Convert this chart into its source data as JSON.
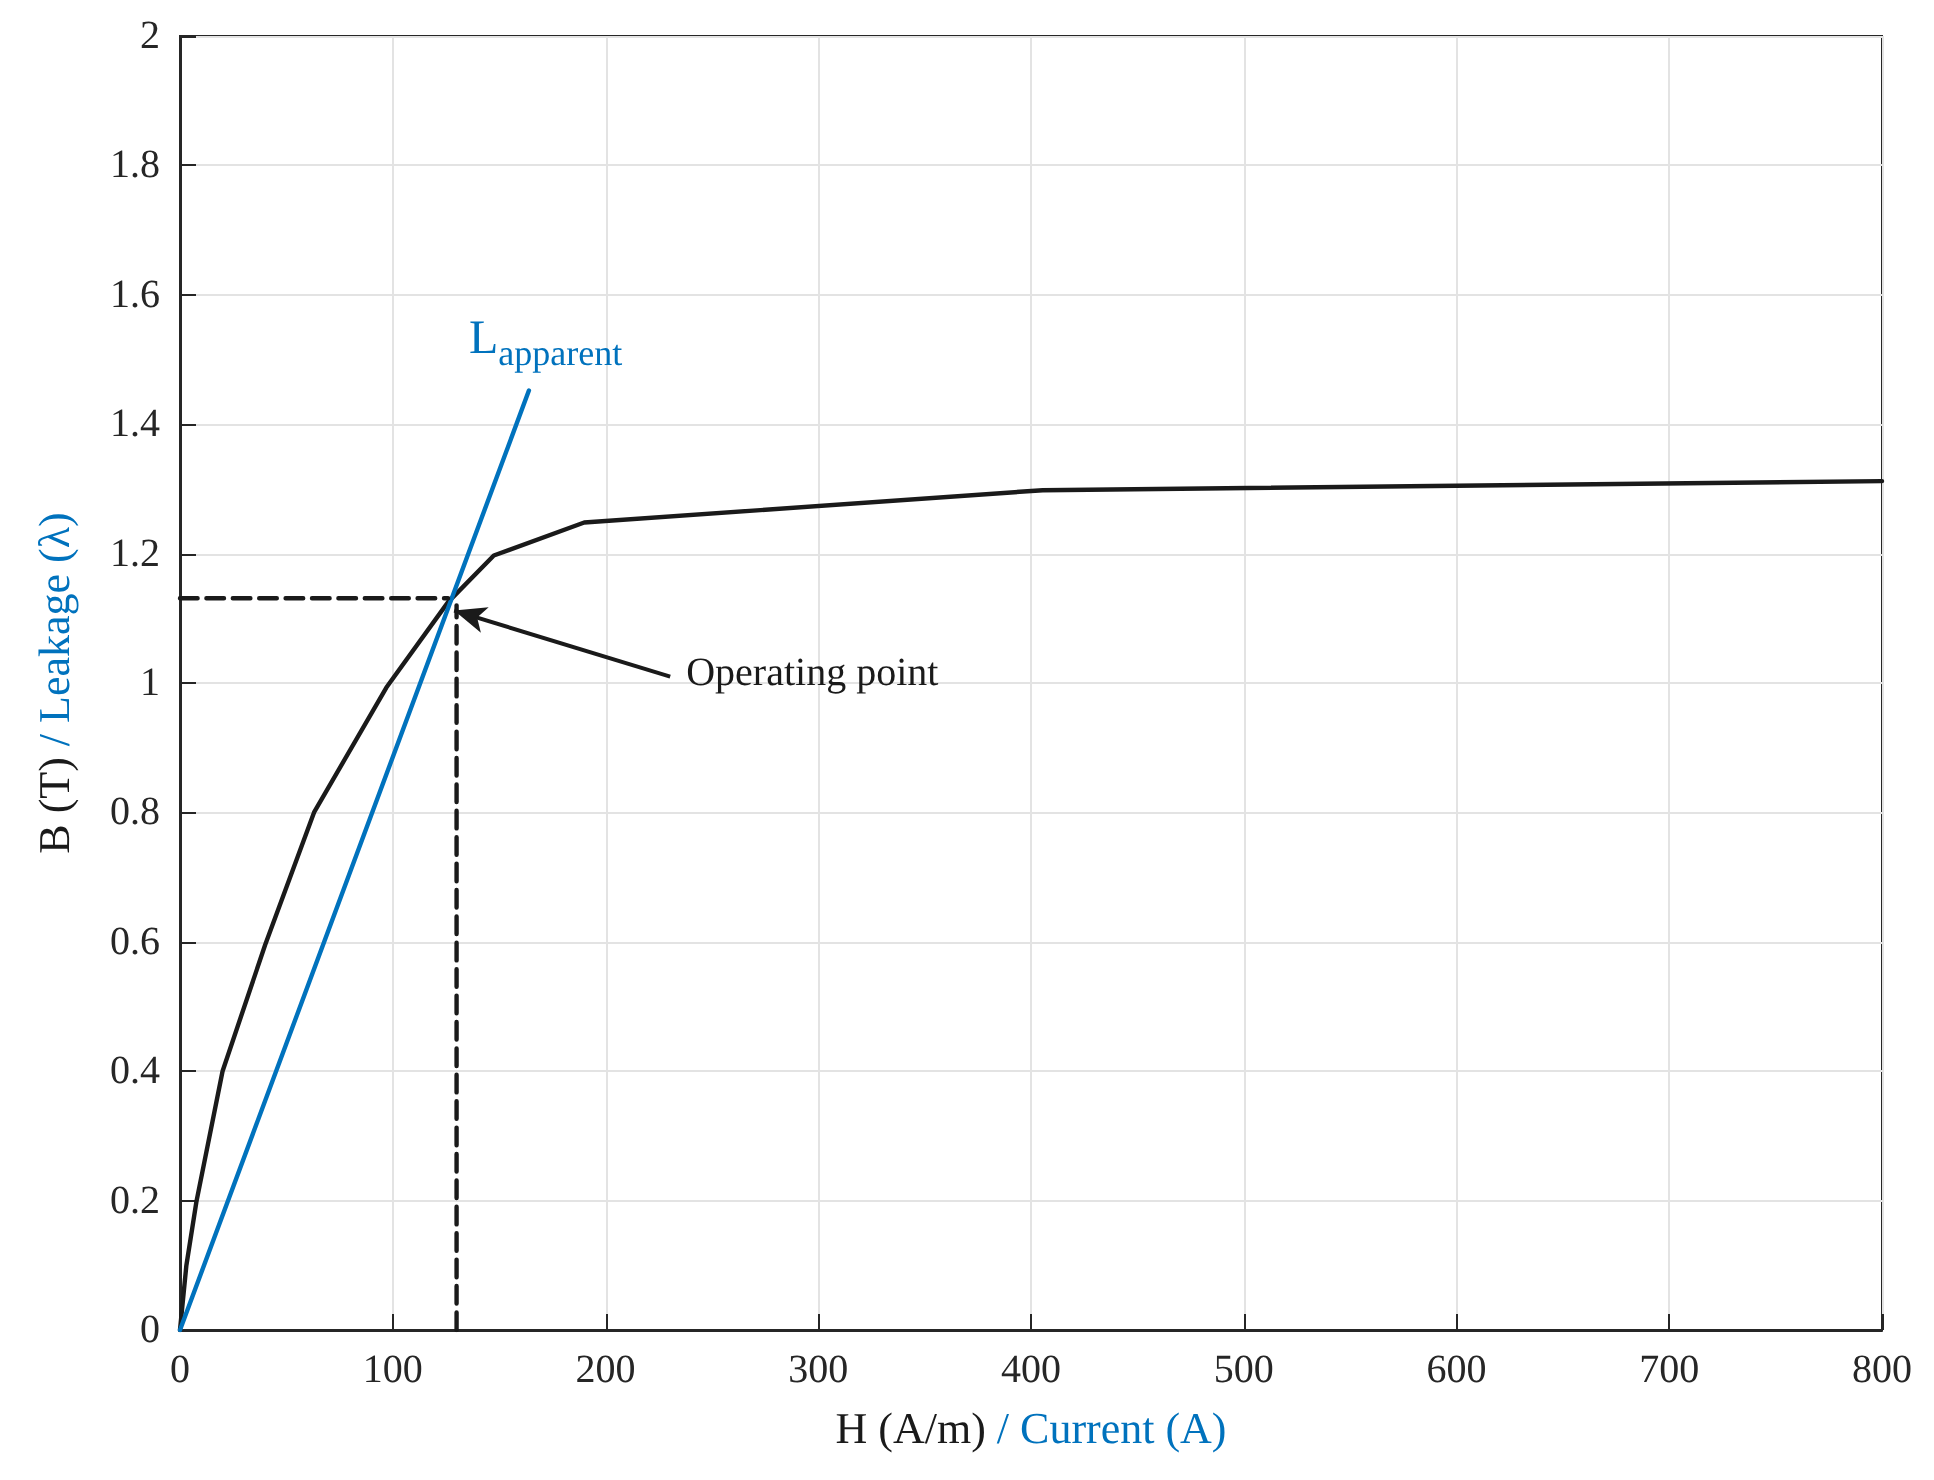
{
  "chart_data": {
    "type": "line",
    "xlabel": "H (A/m) / Current (A)",
    "ylabel": "B (T) / Leakage (λ)",
    "xlim": [
      0,
      800
    ],
    "xticks": [
      0,
      100,
      200,
      300,
      400,
      500,
      600,
      700,
      800
    ],
    "ylim": [
      0,
      2
    ],
    "yticks": [
      0,
      0.2,
      0.4,
      0.6,
      0.8,
      1,
      1.2,
      1.4,
      1.6,
      1.8,
      2
    ],
    "grid": true,
    "marker": "none",
    "line_style": "solid",
    "series": [
      {
        "color": "#1a1a1a",
        "x": [
          0,
          3,
          7.7,
          20,
          40,
          63,
          97,
          126,
          147.5,
          190,
          405.5,
          800
        ],
        "values": [
          0,
          0.1,
          0.198,
          0.4,
          0.595,
          0.8,
          0.993,
          1.125,
          1.197,
          1.248,
          1.298,
          1.312
        ]
      },
      {
        "color": "#0072bd",
        "x": [
          0,
          164
        ],
        "values": [
          0,
          1.452
        ]
      },
      {
        "color": "#1a1a1a",
        "line_style": "dashed",
        "x": [
          0,
          126
        ],
        "values": [
          1.131,
          1.131
        ]
      },
      {
        "color": "#1a1a1a",
        "line_style": "dashed",
        "x": [
          130,
          130
        ],
        "values": [
          0,
          1.12
        ]
      }
    ],
    "annotations": [
      {
        "text": "Operating point",
        "x": 127,
        "y": 1.115
      },
      {
        "text": "L$_{apparent}$",
        "x": 164,
        "y": 1.452
      }
    ]
  }
}
